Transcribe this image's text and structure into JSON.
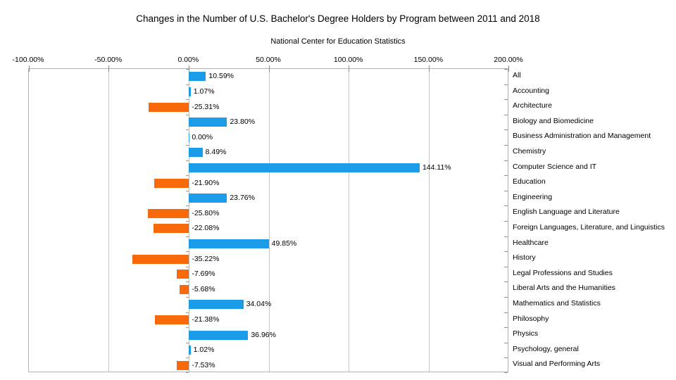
{
  "chart": {
    "title": "Changes in the Number of U.S. Bachelor's Degree Holders by Program between 2011 and 2018",
    "subtitle": "National Center for Education Statistics"
  },
  "chart_data": {
    "type": "bar",
    "orientation": "horizontal",
    "title": "Changes in the Number of U.S. Bachelor's Degree Holders by Program between 2011 and 2018",
    "subtitle": "National Center for Education Statistics",
    "categories": [
      "All",
      "Accounting",
      "Architecture",
      "Biology and Biomedicine",
      "Business Administration and Management",
      "Chemistry",
      "Computer Science and IT",
      "Education",
      "Engineering",
      "English Language and Literature",
      "Foreign Languages, Literature, and Linguistics",
      "Healthcare",
      "History",
      "Legal Professions and Studies",
      "Liberal Arts and the Humanities",
      "Mathematics and Statistics",
      "Philosophy",
      "Physics",
      "Psychology, general",
      "Visual and Performing Arts"
    ],
    "values": [
      10.59,
      1.07,
      -25.31,
      23.8,
      0.0,
      8.49,
      144.11,
      -21.9,
      23.76,
      -25.8,
      -22.08,
      49.85,
      -35.22,
      -7.69,
      -5.68,
      34.04,
      -21.38,
      36.96,
      1.02,
      -7.53
    ],
    "value_labels": [
      "10.59%",
      "1.07%",
      "-25.31%",
      "23.80%",
      "0.00%",
      "8.49%",
      "144.11%",
      "-21.90%",
      "23.76%",
      "-25.80%",
      "-22.08%",
      "49.85%",
      "-35.22%",
      "-7.69%",
      "-5.68%",
      "34.04%",
      "-21.38%",
      "36.96%",
      "1.02%",
      "-7.53%"
    ],
    "x_tick_labels": [
      "-100.00%",
      "-50.00%",
      "0.00%",
      "50.00%",
      "100.00%",
      "150.00%",
      "200.00%"
    ],
    "x_tick_values": [
      -100,
      -50,
      0,
      50,
      100,
      150,
      200
    ],
    "xlim": [
      -100,
      200
    ],
    "grid": true,
    "legend": "none",
    "value_label_position": "outside-end",
    "colors": {
      "positive_bar": "#1a9ce9",
      "negative_bar": "#f8690a",
      "gridline": "#c6c6c6",
      "border": "#b3b3b3",
      "text": "#000000"
    }
  }
}
